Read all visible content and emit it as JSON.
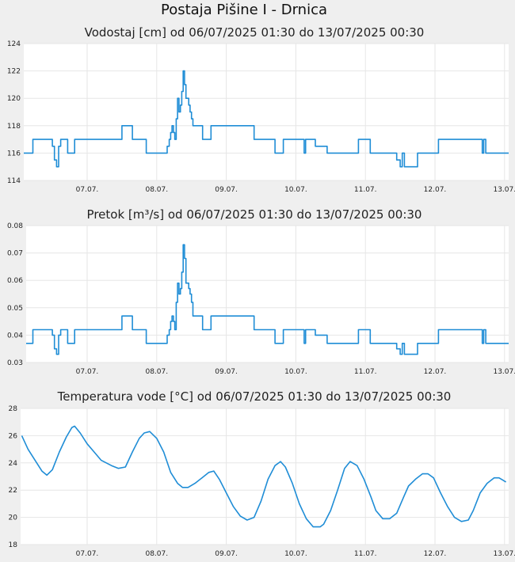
{
  "page_title": "Postaja Pišine I - Drnica",
  "colors": {
    "line": "#1f8dd6",
    "plot_bg": "#ffffff",
    "page_bg": "#efefef",
    "grid": "#e6e6e6"
  },
  "chart_data": [
    {
      "type": "line",
      "title": "Vodostaj [cm] od 06/07/2025 01:30 do 13/07/2025 00:30",
      "x_start_day": 6.0625,
      "x_end_day": 13.02,
      "x_ticks": [
        "07.07.",
        "08.07.",
        "09.07.",
        "10.07.",
        "11.07.",
        "12.07.",
        "13.07."
      ],
      "y_ticks": [
        114,
        116,
        118,
        120,
        122,
        124
      ],
      "ylim": [
        114,
        124
      ],
      "step": true,
      "series": [
        {
          "x": [
            6.06,
            6.22,
            6.5,
            6.53,
            6.56,
            6.59,
            6.62,
            6.68,
            6.72,
            6.8,
            6.82,
            6.9,
            6.93,
            7.25,
            7.5,
            7.6,
            7.65,
            7.82,
            7.85,
            8.15,
            8.18,
            8.2,
            8.22,
            8.24,
            8.26,
            8.28,
            8.3,
            8.32,
            8.34,
            8.36,
            8.38,
            8.4,
            8.42,
            8.44,
            8.46,
            8.48,
            8.5,
            8.52,
            8.56,
            8.6,
            8.66,
            8.75,
            8.78,
            8.98,
            9.05,
            9.4,
            9.45,
            9.7,
            9.8,
            9.82,
            9.95,
            10.12,
            10.14,
            10.18,
            10.28,
            10.45,
            10.47,
            10.55,
            10.58,
            10.61,
            10.64,
            10.9,
            11.05,
            11.07,
            11.45,
            11.5,
            11.53,
            11.56,
            11.65,
            11.68,
            11.75,
            11.78,
            11.82,
            12.05,
            12.1,
            12.15,
            12.5,
            12.68,
            12.7,
            12.73,
            12.8,
            13.02
          ],
          "y": [
            116,
            117,
            116.5,
            115.5,
            115,
            116.5,
            117,
            117,
            116,
            116,
            117,
            117,
            117,
            117,
            118,
            118,
            117,
            117,
            116,
            116.5,
            117,
            117.5,
            118,
            117.5,
            117,
            118.5,
            120,
            119,
            119.5,
            120.5,
            122,
            121,
            120,
            120,
            119.5,
            119,
            118.5,
            118,
            118,
            118,
            117,
            117,
            118,
            118,
            118,
            117,
            117,
            116,
            116,
            117,
            117,
            116,
            117,
            117,
            116.5,
            116,
            116,
            116,
            116,
            116,
            116,
            117,
            117,
            116,
            115.5,
            115,
            116,
            115,
            115,
            115,
            116,
            116,
            116,
            117,
            117,
            117,
            117,
            116,
            117,
            116,
            116,
            116
          ]
        }
      ]
    },
    {
      "type": "line",
      "title": "Pretok [m³/s] od 06/07/2025 01:30 do 13/07/2025 00:30",
      "x_start_day": 6.0625,
      "x_end_day": 13.02,
      "x_ticks": [
        "07.07.",
        "08.07.",
        "09.07.",
        "10.07.",
        "11.07.",
        "12.07.",
        "13.07."
      ],
      "y_ticks": [
        0.03,
        0.04,
        0.05,
        0.06,
        0.07,
        0.08
      ],
      "ylim": [
        0.03,
        0.08
      ],
      "step": true,
      "series": [
        {
          "x": [
            6.06,
            6.22,
            6.5,
            6.53,
            6.56,
            6.59,
            6.62,
            6.68,
            6.72,
            6.8,
            6.82,
            6.9,
            6.93,
            7.25,
            7.5,
            7.6,
            7.65,
            7.82,
            7.85,
            8.15,
            8.18,
            8.2,
            8.22,
            8.24,
            8.26,
            8.28,
            8.3,
            8.32,
            8.34,
            8.36,
            8.38,
            8.4,
            8.42,
            8.44,
            8.46,
            8.48,
            8.5,
            8.52,
            8.56,
            8.6,
            8.66,
            8.75,
            8.78,
            8.98,
            9.05,
            9.4,
            9.45,
            9.7,
            9.8,
            9.82,
            9.95,
            10.12,
            10.14,
            10.18,
            10.28,
            10.45,
            10.47,
            10.55,
            10.58,
            10.61,
            10.64,
            10.9,
            11.05,
            11.07,
            11.45,
            11.5,
            11.53,
            11.56,
            11.65,
            11.68,
            11.75,
            11.78,
            11.82,
            12.05,
            12.1,
            12.15,
            12.5,
            12.68,
            12.7,
            12.73,
            12.8,
            13.02
          ],
          "y": [
            0.037,
            0.042,
            0.04,
            0.035,
            0.033,
            0.04,
            0.042,
            0.042,
            0.037,
            0.037,
            0.042,
            0.042,
            0.042,
            0.042,
            0.047,
            0.047,
            0.042,
            0.042,
            0.037,
            0.04,
            0.042,
            0.045,
            0.047,
            0.045,
            0.042,
            0.052,
            0.059,
            0.055,
            0.057,
            0.063,
            0.073,
            0.068,
            0.059,
            0.059,
            0.057,
            0.055,
            0.052,
            0.047,
            0.047,
            0.047,
            0.042,
            0.042,
            0.047,
            0.047,
            0.047,
            0.042,
            0.042,
            0.037,
            0.037,
            0.042,
            0.042,
            0.037,
            0.042,
            0.042,
            0.04,
            0.037,
            0.037,
            0.037,
            0.037,
            0.037,
            0.037,
            0.042,
            0.042,
            0.037,
            0.035,
            0.033,
            0.037,
            0.033,
            0.033,
            0.033,
            0.037,
            0.037,
            0.037,
            0.042,
            0.042,
            0.042,
            0.042,
            0.037,
            0.042,
            0.037,
            0.037,
            0.037
          ]
        }
      ]
    },
    {
      "type": "line",
      "title": "Temperatura vode [°C] od 06/07/2025 01:30 do 13/07/2025 00:30",
      "x_start_day": 6.0625,
      "x_end_day": 13.02,
      "x_ticks": [
        "07.07.",
        "08.07.",
        "09.07.",
        "10.07.",
        "11.07.",
        "12.07.",
        "13.07."
      ],
      "y_ticks": [
        18,
        20,
        22,
        24,
        26,
        28
      ],
      "ylim": [
        18,
        28
      ],
      "step": false,
      "series": [
        {
          "x": [
            6.06,
            6.15,
            6.25,
            6.35,
            6.42,
            6.5,
            6.6,
            6.7,
            6.78,
            6.82,
            6.9,
            7.0,
            7.1,
            7.2,
            7.35,
            7.45,
            7.55,
            7.65,
            7.75,
            7.82,
            7.9,
            8.0,
            8.1,
            8.2,
            8.3,
            8.37,
            8.45,
            8.55,
            8.65,
            8.75,
            8.82,
            8.9,
            9.0,
            9.1,
            9.2,
            9.3,
            9.4,
            9.5,
            9.6,
            9.7,
            9.78,
            9.85,
            9.95,
            10.05,
            10.15,
            10.25,
            10.35,
            10.4,
            10.5,
            10.6,
            10.7,
            10.78,
            10.88,
            10.98,
            11.08,
            11.15,
            11.25,
            11.35,
            11.45,
            11.55,
            11.62,
            11.72,
            11.82,
            11.9,
            11.98,
            12.08,
            12.18,
            12.28,
            12.38,
            12.48,
            12.55,
            12.65,
            12.75,
            12.85,
            12.92,
            13.02
          ],
          "y": [
            26.0,
            25.0,
            24.2,
            23.4,
            23.1,
            23.5,
            24.8,
            25.9,
            26.6,
            26.7,
            26.2,
            25.4,
            24.8,
            24.2,
            23.8,
            23.6,
            23.7,
            24.8,
            25.8,
            26.2,
            26.3,
            25.8,
            24.8,
            23.3,
            22.5,
            22.2,
            22.2,
            22.5,
            22.9,
            23.3,
            23.4,
            22.8,
            21.8,
            20.8,
            20.1,
            19.8,
            20.0,
            21.2,
            22.8,
            23.8,
            24.1,
            23.7,
            22.5,
            21.0,
            19.9,
            19.3,
            19.3,
            19.5,
            20.5,
            22.0,
            23.6,
            24.1,
            23.8,
            22.8,
            21.5,
            20.5,
            19.9,
            19.9,
            20.3,
            21.5,
            22.3,
            22.8,
            23.2,
            23.2,
            22.9,
            21.8,
            20.8,
            20.0,
            19.7,
            19.8,
            20.5,
            21.8,
            22.5,
            22.9,
            22.9,
            22.6
          ]
        }
      ]
    }
  ]
}
